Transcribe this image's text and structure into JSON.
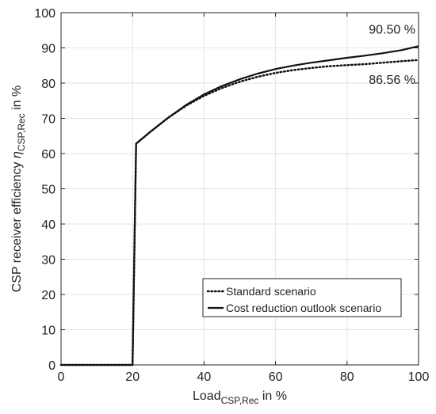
{
  "chart_data": {
    "type": "line",
    "xlabel": {
      "main": "Load",
      "sub": "CSP,Rec",
      "suffix": " in %"
    },
    "ylabel": {
      "main": "CSP receiver efficiency ",
      "symbol": "η",
      "sub": "CSP,Rec",
      "suffix": " in %"
    },
    "xlim": [
      0,
      100
    ],
    "ylim": [
      0,
      100
    ],
    "xticks": [
      0,
      20,
      40,
      60,
      80,
      100
    ],
    "yticks": [
      0,
      10,
      20,
      30,
      40,
      50,
      60,
      70,
      80,
      90,
      100
    ],
    "grid": true,
    "legend_position": "bottom-right",
    "series": [
      {
        "name": "Standard scenario",
        "style": "dotted",
        "points": [
          [
            0,
            0
          ],
          [
            20,
            0
          ],
          [
            21,
            62.8
          ],
          [
            25,
            66.2
          ],
          [
            30,
            70.2
          ],
          [
            35,
            73.6
          ],
          [
            40,
            76.4
          ],
          [
            45,
            78.6
          ],
          [
            50,
            80.4
          ],
          [
            55,
            81.8
          ],
          [
            60,
            82.9
          ],
          [
            65,
            83.7
          ],
          [
            70,
            84.3
          ],
          [
            75,
            84.8
          ],
          [
            80,
            85.1
          ],
          [
            85,
            85.4
          ],
          [
            90,
            85.8
          ],
          [
            95,
            86.2
          ],
          [
            100,
            86.56
          ]
        ]
      },
      {
        "name": "Cost reduction outlook scenario",
        "style": "solid",
        "points": [
          [
            0,
            0
          ],
          [
            20,
            0
          ],
          [
            21,
            62.8
          ],
          [
            25,
            66.2
          ],
          [
            30,
            70.2
          ],
          [
            35,
            73.8
          ],
          [
            40,
            76.8
          ],
          [
            45,
            79.2
          ],
          [
            50,
            81.1
          ],
          [
            55,
            82.7
          ],
          [
            60,
            84.0
          ],
          [
            65,
            85.0
          ],
          [
            70,
            85.8
          ],
          [
            75,
            86.5
          ],
          [
            80,
            87.2
          ],
          [
            85,
            87.8
          ],
          [
            90,
            88.5
          ],
          [
            95,
            89.3
          ],
          [
            100,
            90.5
          ]
        ]
      }
    ],
    "annotations": [
      {
        "text": "90.50 %",
        "series": 1
      },
      {
        "text": "86.56 %",
        "series": 0
      }
    ]
  }
}
